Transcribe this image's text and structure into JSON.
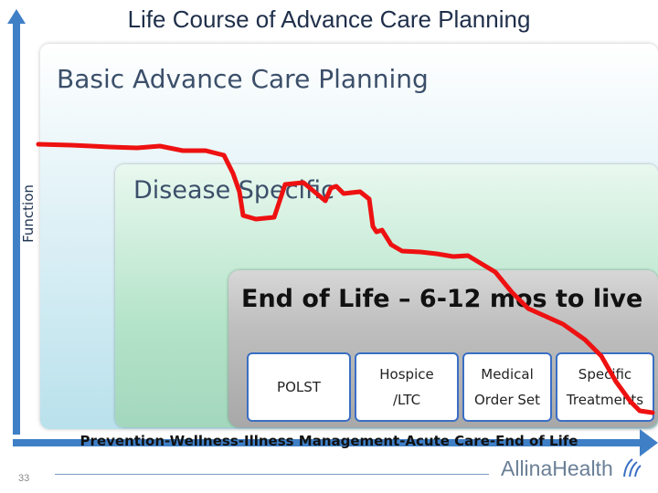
{
  "title": "Life Course of Advance Care Planning",
  "y_axis_label": "Function",
  "regions": {
    "basic": "Basic Advance Care Planning",
    "disease": "Disease Specific",
    "end_of_life": "End of Life – 6-12 mos to live"
  },
  "boxes": [
    {
      "label": "POLST"
    },
    {
      "label": "Hospice\n/LTC"
    },
    {
      "label": "Medical\nOrder Set"
    },
    {
      "label": "Specific\nTreatments"
    }
  ],
  "x_axis_label": "Prevention-Wellness-Illness Management-Acute Care-End of Life",
  "slide_number": "33",
  "logo_text": "AllinaHealth",
  "colors": {
    "decline_line": "#ee1111",
    "axis_arrow": "#3f7fc6",
    "box_border": "#3a6fc4"
  }
}
